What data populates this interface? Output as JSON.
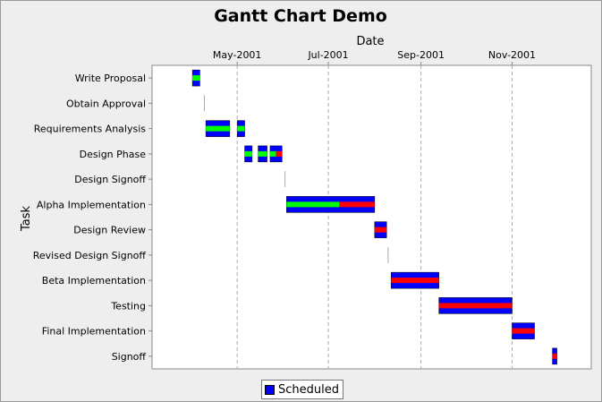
{
  "chart_data": {
    "type": "gantt",
    "title": "Gantt Chart Demo",
    "xlabel": "Date",
    "ylabel": "Task",
    "xlim": [
      "2001-03-05",
      "2001-12-24"
    ],
    "x_tick_labels": [
      "May-2001",
      "Jul-2001",
      "Sep-2001",
      "Nov-2001"
    ],
    "x_tick_dates": [
      "2001-05-01",
      "2001-07-01",
      "2001-09-01",
      "2001-11-01"
    ],
    "grid": "vertical dashed",
    "legend": "bottom-center",
    "series": [
      {
        "name": "Scheduled",
        "color": "#0000ff"
      }
    ],
    "progress_colors": {
      "complete": "#00ff00",
      "incomplete": "#ff0000"
    },
    "tasks": [
      {
        "name": "Write Proposal",
        "start": "2001-04-01",
        "end": "2001-04-05",
        "percent_complete": 1.0,
        "subtasks": []
      },
      {
        "name": "Obtain Approval",
        "start": "2001-04-09",
        "end": "2001-04-09",
        "percent_complete": 1.0,
        "subtasks": []
      },
      {
        "name": "Requirements Analysis",
        "start": "2001-04-10",
        "end": "2001-05-05",
        "percent_complete": 1.0,
        "subtasks": [
          {
            "start": "2001-04-10",
            "end": "2001-04-25",
            "percent_complete": 1.0
          },
          {
            "start": "2001-05-01",
            "end": "2001-05-05",
            "percent_complete": 1.0
          }
        ]
      },
      {
        "name": "Design Phase",
        "start": "2001-05-06",
        "end": "2001-05-30",
        "percent_complete": 0.6,
        "subtasks": [
          {
            "start": "2001-05-06",
            "end": "2001-05-10",
            "percent_complete": 1.0
          },
          {
            "start": "2001-05-15",
            "end": "2001-05-20",
            "percent_complete": 1.0
          },
          {
            "start": "2001-05-23",
            "end": "2001-05-30",
            "percent_complete": 0.5
          }
        ]
      },
      {
        "name": "Design Signoff",
        "start": "2001-06-02",
        "end": "2001-06-02",
        "percent_complete": 1.0,
        "subtasks": []
      },
      {
        "name": "Alpha Implementation",
        "start": "2001-06-03",
        "end": "2001-07-31",
        "percent_complete": 0.6,
        "subtasks": []
      },
      {
        "name": "Design Review",
        "start": "2001-08-01",
        "end": "2001-08-08",
        "percent_complete": 0.0,
        "subtasks": []
      },
      {
        "name": "Revised Design Signoff",
        "start": "2001-08-10",
        "end": "2001-08-10",
        "percent_complete": 0.0,
        "subtasks": []
      },
      {
        "name": "Beta Implementation",
        "start": "2001-08-12",
        "end": "2001-09-12",
        "percent_complete": 0.0,
        "subtasks": []
      },
      {
        "name": "Testing",
        "start": "2001-09-13",
        "end": "2001-10-31",
        "percent_complete": 0.0,
        "subtasks": []
      },
      {
        "name": "Final Implementation",
        "start": "2001-11-01",
        "end": "2001-11-15",
        "percent_complete": 0.0,
        "subtasks": []
      },
      {
        "name": "Signoff",
        "start": "2001-11-28",
        "end": "2001-11-30",
        "percent_complete": 0.0,
        "subtasks": []
      }
    ]
  }
}
